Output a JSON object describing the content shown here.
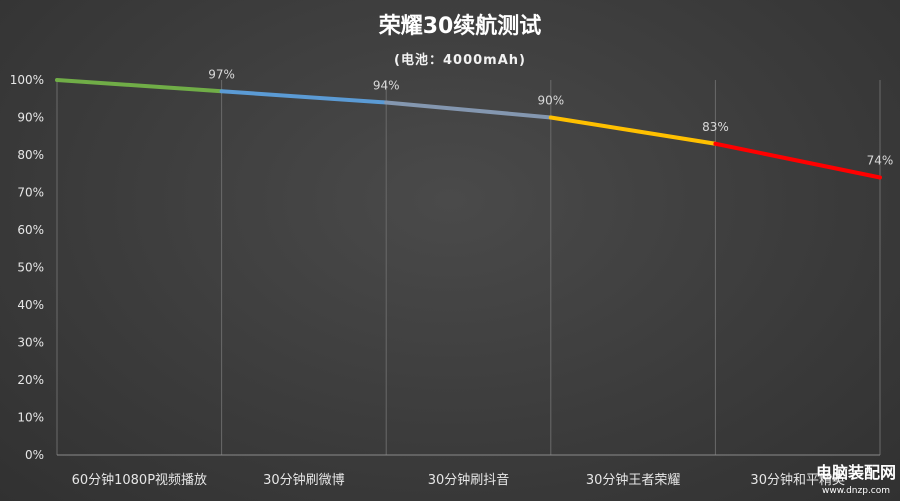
{
  "chart_data": {
    "type": "line",
    "title": "荣耀30续航测试",
    "subtitle": "(电池：4000mAh)",
    "categories": [
      "60分钟1080P视频播放",
      "30分钟刷微博",
      "30分钟刷抖音",
      "30分钟王者荣耀",
      "30分钟和平精英"
    ],
    "x": [
      0,
      1,
      2,
      3,
      4,
      5
    ],
    "values": [
      100,
      97,
      94,
      90,
      83,
      74
    ],
    "data_labels": [
      "",
      "97%",
      "94%",
      "90%",
      "83%",
      "74%"
    ],
    "segment_colors": [
      "#70ad47",
      "#5b9bd5",
      "#8497b0",
      "#ffc000",
      "#ff0000"
    ],
    "yticks": [
      "0%",
      "10%",
      "20%",
      "30%",
      "40%",
      "50%",
      "60%",
      "70%",
      "80%",
      "90%",
      "100%"
    ],
    "ylim": [
      0,
      100
    ],
    "grid": "vertical",
    "legend": "none"
  },
  "watermark": {
    "main": "电脑装配网",
    "sub": "www.dnzp.com"
  }
}
